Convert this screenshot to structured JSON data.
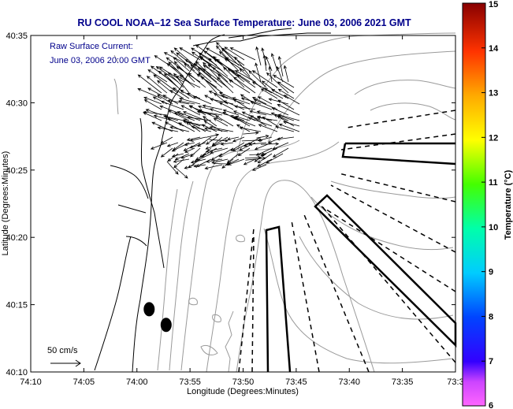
{
  "chart_data": {
    "type": "scatter",
    "title": "RU COOL  NOAA–12  Sea Surface Temperature:  June 03, 2006 2021 GMT",
    "xlabel": "Longitude (Degrees:Minutes)",
    "ylabel": "Latitude (Degrees:Minutes)",
    "x_ticks": [
      "74:10",
      "74:05",
      "74:00",
      "73:55",
      "73:50",
      "73:45",
      "73:40",
      "73:35",
      "73:3"
    ],
    "y_ticks": [
      "40:10",
      "40:15",
      "40:20",
      "40:25",
      "40:30",
      "40:35"
    ],
    "xlim": [
      -74.1667,
      -73.5
    ],
    "ylim": [
      40.1667,
      40.5833
    ],
    "annotation_lines": [
      "Raw Surface Current:",
      "June 03, 2006 20:00 GMT"
    ],
    "scale_label": "50 cm/s",
    "colorbar": {
      "label": "Temperature (°C)",
      "ticks": [
        "6",
        "7",
        "8",
        "9",
        "10",
        "11",
        "12",
        "13",
        "14",
        "15"
      ],
      "range": [
        6,
        15
      ]
    },
    "markers": [
      {
        "name": "buoy",
        "x": -73.9808,
        "y": 40.2444
      },
      {
        "name": "buoy",
        "x": -73.9542,
        "y": 40.225
      }
    ],
    "grid": false
  }
}
